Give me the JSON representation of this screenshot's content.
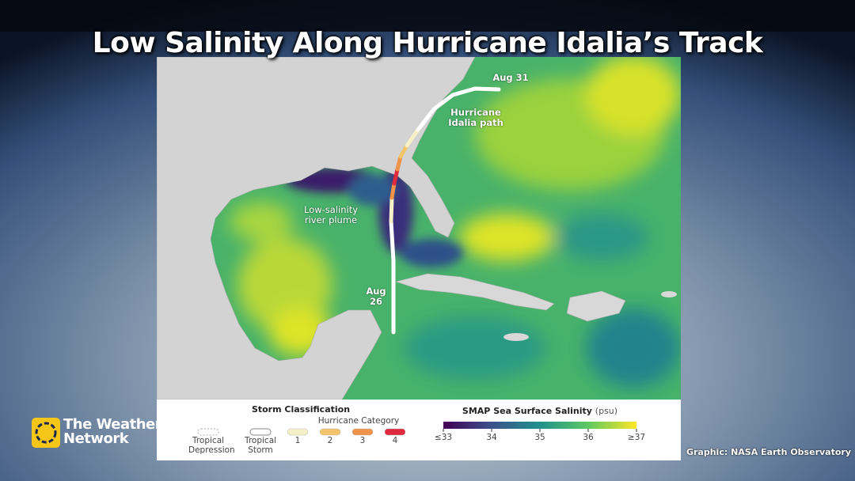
{
  "header": {
    "title": "Low Salinity Along Hurricane Idalia’s Track"
  },
  "map": {
    "annotations": [
      "Aug 31",
      "Hurricane Idalia path",
      "Low-salinity river plume",
      "Aug 26"
    ]
  },
  "legend": {
    "storm_classification": {
      "title": "Storm Classification",
      "classes": [
        "Tropical Depression",
        "Tropical Storm"
      ],
      "hurricane_category": {
        "title": "Hurricane Category",
        "categories": [
          "1",
          "2",
          "3",
          "4"
        ],
        "colors": [
          "#f5f0c8",
          "#f2c56a",
          "#ee9347",
          "#de2a3c"
        ]
      }
    },
    "salinity": {
      "title": "SMAP Sea Surface Salinity",
      "unit": "(psu)",
      "range": [
        33,
        37
      ],
      "ticks": [
        {
          "value": 33,
          "label": "≤33"
        },
        34,
        35,
        36,
        {
          "value": 37,
          "label": "≥37"
        }
      ]
    }
  },
  "branding": {
    "logo": "The Weather Network",
    "credit": "Graphic: NASA Earth Observatory"
  }
}
